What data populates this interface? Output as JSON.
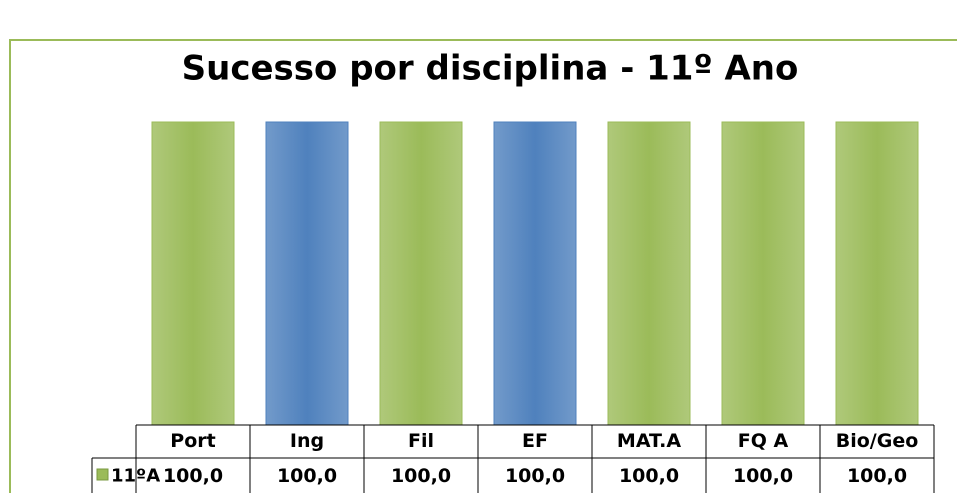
{
  "chart_data": {
    "type": "bar",
    "title": "Sucesso por disciplina - 11º Ano",
    "categories": [
      "Port",
      "Ing",
      "Fil",
      "EF",
      "MAT.A",
      "FQ A",
      "Bio/Geo"
    ],
    "series": [
      {
        "name": "11ºA",
        "color": "#9bbb59",
        "colors": [
          "#9bbb59",
          "#4f81bd",
          "#9bbb59",
          "#4f81bd",
          "#9bbb59",
          "#9bbb59",
          "#9bbb59"
        ],
        "values": [
          100,
          100,
          100,
          100,
          100,
          100,
          100
        ],
        "value_labels": [
          "100,0",
          "100,0",
          "100,0",
          "100,0",
          "100,0",
          "100,0",
          "100,0"
        ]
      }
    ],
    "ylim": [
      0,
      100
    ],
    "grid": false,
    "data_table": true
  }
}
